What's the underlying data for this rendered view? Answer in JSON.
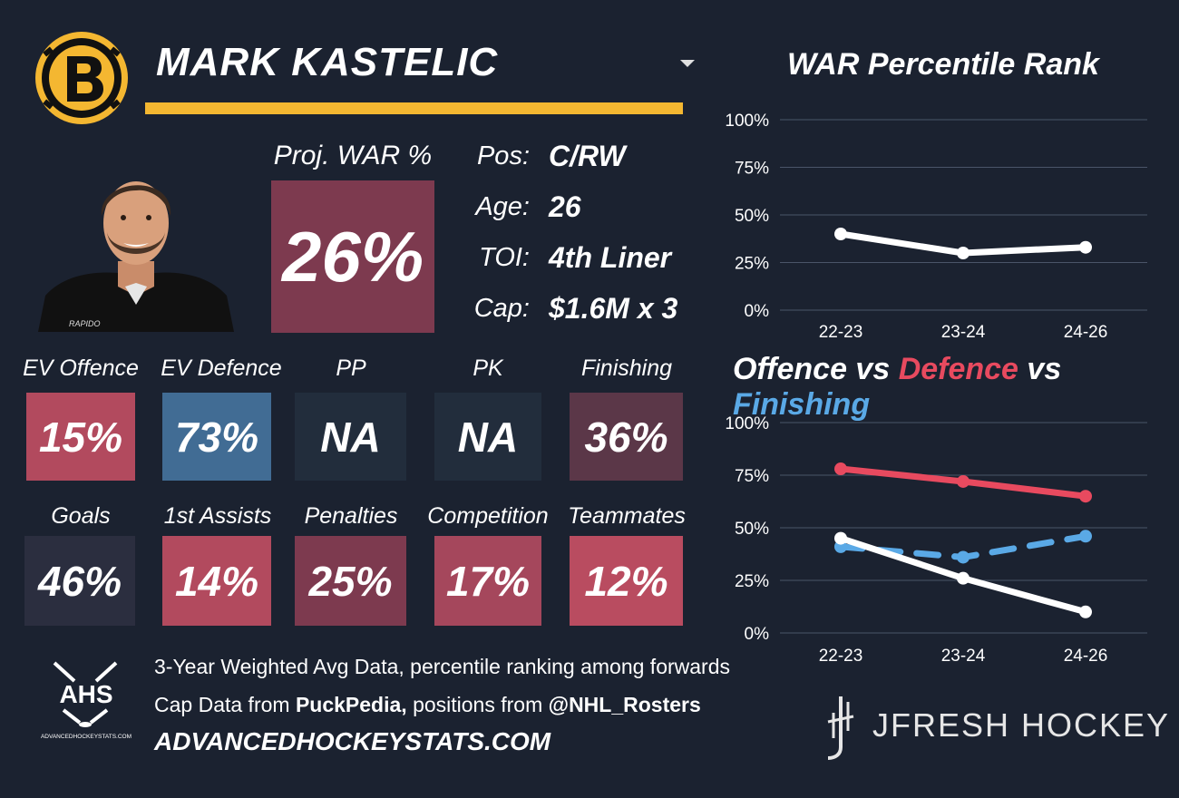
{
  "player": {
    "name": "MARK KASTELIC",
    "proj_war_label": "Proj. WAR %",
    "proj_war_value": "26%"
  },
  "info": [
    {
      "label": "Pos:",
      "value": "C/RW"
    },
    {
      "label": "Age:",
      "value": "26"
    },
    {
      "label": "TOI:",
      "value": "4th Liner"
    },
    {
      "label": "Cap:",
      "value": "$1.6M x 3"
    }
  ],
  "tiles_row1": [
    {
      "label": "EV Offence",
      "value": "15%",
      "color": "#b24a5e"
    },
    {
      "label": "EV Defence",
      "value": "73%",
      "color": "#416c94"
    },
    {
      "label": "PP",
      "value": "NA",
      "color": "#222d3c"
    },
    {
      "label": "PK",
      "value": "NA",
      "color": "#222d3c"
    },
    {
      "label": "Finishing",
      "value": "36%",
      "color": "#5b3748"
    }
  ],
  "tiles_row2": [
    {
      "label": "Goals",
      "value": "46%",
      "color": "#2b2e3f"
    },
    {
      "label": "1st Assists",
      "value": "14%",
      "color": "#b24a5e"
    },
    {
      "label": "Penalties",
      "value": "25%",
      "color": "#7d3a4f"
    },
    {
      "label": "Competition",
      "value": "17%",
      "color": "#a5475c"
    },
    {
      "label": "Teammates",
      "value": "12%",
      "color": "#b94c60"
    }
  ],
  "footer": {
    "line1": "3-Year Weighted Avg Data, percentile ranking among forwards",
    "line2_prefix": "Cap Data from ",
    "line2_bold1": "PuckPedia,",
    "line2_mid": " positions from ",
    "line2_bold2": "@NHL_Rosters",
    "url": "ADVANCEDHOCKEYSTATS.COM",
    "ahs_logo_text": "AHS",
    "ahs_logo_sub": "ADVANCEDHOCKEYSTATS.COM",
    "jfresh": "JFRESH HOCKEY"
  },
  "icons": {
    "team_logo": "bruins-logo-icon",
    "dropdown": "chevron-down-icon",
    "ahs": "ahs-logo-icon",
    "jfresh": "jfresh-logo-icon"
  },
  "colors": {
    "background": "#1b2230",
    "gold": "#f4b731",
    "offence_line": "#ffffff",
    "defence_line": "#e84a5f",
    "finishing_line": "#5aa9e6"
  },
  "chart_data": [
    {
      "type": "line",
      "title": "WAR Percentile Rank",
      "categories": [
        "22-23",
        "23-24",
        "24-26"
      ],
      "series": [
        {
          "values": [
            40,
            30,
            33
          ],
          "color": "#ffffff",
          "dash": false
        }
      ],
      "yticks": [
        "100%",
        "75%",
        "50%",
        "25%",
        "0%"
      ],
      "ylim": [
        0,
        100
      ],
      "grid": true
    },
    {
      "type": "line",
      "title_parts": [
        {
          "text": "Offence vs ",
          "color": "#ffffff"
        },
        {
          "text": "Defence",
          "color": "#e84a5f"
        },
        {
          "text": " vs ",
          "color": "#ffffff"
        },
        {
          "text": "Finishing",
          "color": "#5aa9e6"
        }
      ],
      "categories": [
        "22-23",
        "23-24",
        "24-26"
      ],
      "series": [
        {
          "values": [
            78,
            72,
            65
          ],
          "color": "#e84a5f",
          "dash": false
        },
        {
          "values": [
            41,
            36,
            46
          ],
          "color": "#5aa9e6",
          "dash": true
        },
        {
          "values": [
            45,
            26,
            10
          ],
          "color": "#ffffff",
          "dash": false
        }
      ],
      "yticks": [
        "100%",
        "75%",
        "50%",
        "25%",
        "0%"
      ],
      "ylim": [
        0,
        100
      ],
      "grid": true
    }
  ]
}
